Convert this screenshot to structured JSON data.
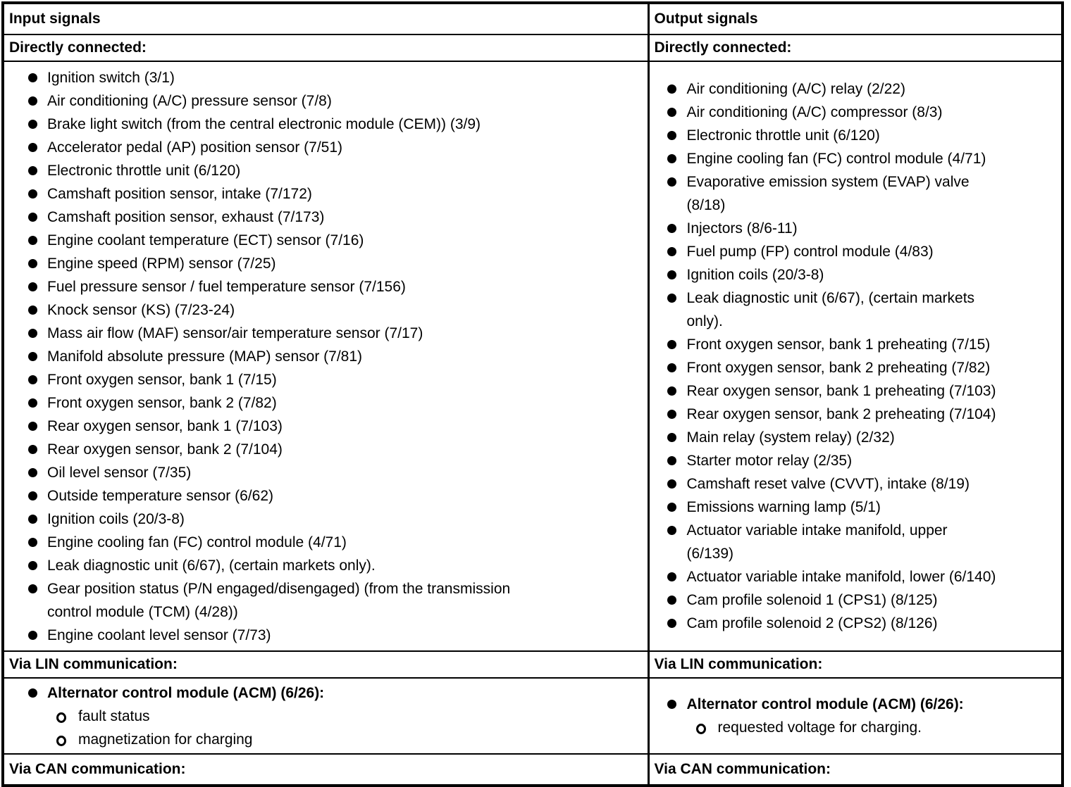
{
  "colors": {
    "text": "#000000",
    "border": "#000000",
    "background": "#ffffff"
  },
  "input": {
    "header": "Input signals",
    "direct_label": "Directly connected:",
    "direct_items": [
      {
        "lines": [
          "Ignition switch (3/1)"
        ]
      },
      {
        "lines": [
          "Air conditioning (A/C) pressure sensor (7/8)"
        ]
      },
      {
        "lines": [
          "Brake light switch (from the central electronic module (CEM)) (3/9)"
        ]
      },
      {
        "lines": [
          "Accelerator pedal (AP) position sensor (7/51)"
        ]
      },
      {
        "lines": [
          "Electronic throttle unit (6/120)"
        ]
      },
      {
        "lines": [
          "Camshaft position sensor, intake (7/172)"
        ]
      },
      {
        "lines": [
          "Camshaft position sensor, exhaust (7/173)"
        ]
      },
      {
        "lines": [
          "Engine coolant temperature (ECT) sensor (7/16)"
        ]
      },
      {
        "lines": [
          "Engine speed (RPM) sensor (7/25)"
        ]
      },
      {
        "lines": [
          "Fuel pressure sensor / fuel temperature sensor (7/156)"
        ]
      },
      {
        "lines": [
          "Knock sensor (KS) (7/23-24)"
        ]
      },
      {
        "lines": [
          "Mass air flow (MAF) sensor/air temperature sensor (7/17)"
        ]
      },
      {
        "lines": [
          "Manifold absolute pressure (MAP) sensor (7/81)"
        ]
      },
      {
        "lines": [
          "Front oxygen sensor, bank 1 (7/15)"
        ]
      },
      {
        "lines": [
          "Front oxygen sensor, bank 2 (7/82)"
        ]
      },
      {
        "lines": [
          "Rear oxygen sensor, bank 1 (7/103)"
        ]
      },
      {
        "lines": [
          "Rear oxygen sensor, bank 2 (7/104)"
        ]
      },
      {
        "lines": [
          "Oil level sensor (7/35)"
        ]
      },
      {
        "lines": [
          "Outside temperature sensor (6/62)"
        ]
      },
      {
        "lines": [
          "Ignition coils (20/3-8)"
        ]
      },
      {
        "lines": [
          "Engine cooling fan (FC) control module (4/71)"
        ]
      },
      {
        "lines": [
          "Leak diagnostic unit (6/67), (certain markets only)."
        ]
      },
      {
        "lines": [
          "Gear position status (P/N engaged/disengaged) (from the transmission",
          "control module (TCM) (4/28))"
        ]
      },
      {
        "lines": [
          "Engine coolant level sensor (7/73)"
        ]
      }
    ],
    "lin_label": "Via LIN communication:",
    "lin_items": [
      {
        "lines": [
          "Alternator control module (ACM) (6/26):"
        ],
        "bold": true,
        "sub": [
          "fault status",
          "magnetization for charging"
        ]
      }
    ],
    "can_label": "Via CAN communication:"
  },
  "output": {
    "header": "Output signals",
    "direct_label": "Directly connected:",
    "direct_items": [
      {
        "lines": [
          "Air conditioning (A/C) relay (2/22)"
        ]
      },
      {
        "lines": [
          "Air conditioning (A/C) compressor (8/3)"
        ]
      },
      {
        "lines": [
          "Electronic throttle unit (6/120)"
        ]
      },
      {
        "lines": [
          "Engine cooling fan (FC) control module (4/71)"
        ]
      },
      {
        "lines": [
          "Evaporative emission system (EVAP) valve",
          "(8/18)"
        ]
      },
      {
        "lines": [
          "Injectors (8/6-11)"
        ]
      },
      {
        "lines": [
          "Fuel pump (FP) control module (4/83)"
        ]
      },
      {
        "lines": [
          "Ignition coils (20/3-8)"
        ]
      },
      {
        "lines": [
          "Leak diagnostic unit (6/67), (certain markets",
          "only)."
        ]
      },
      {
        "lines": [
          "Front oxygen sensor, bank 1 preheating (7/15)"
        ]
      },
      {
        "lines": [
          "Front oxygen sensor, bank 2 preheating (7/82)"
        ]
      },
      {
        "lines": [
          "Rear oxygen sensor, bank 1 preheating (7/103)"
        ]
      },
      {
        "lines": [
          "Rear oxygen sensor, bank 2 preheating (7/104)"
        ]
      },
      {
        "lines": [
          "Main relay (system relay) (2/32)"
        ]
      },
      {
        "lines": [
          "Starter motor relay (2/35)"
        ]
      },
      {
        "lines": [
          "Camshaft reset valve (CVVT), intake (8/19)"
        ]
      },
      {
        "lines": [
          "Emissions warning lamp (5/1)"
        ]
      },
      {
        "lines": [
          "Actuator variable intake manifold, upper",
          "(6/139)"
        ]
      },
      {
        "lines": [
          "Actuator variable intake manifold, lower (6/140)"
        ]
      },
      {
        "lines": [
          "Cam profile solenoid 1 (CPS1) (8/125)"
        ]
      },
      {
        "lines": [
          "Cam profile solenoid 2 (CPS2) (8/126)"
        ]
      }
    ],
    "lin_label": "Via LIN communication:",
    "lin_items": [
      {
        "lines": [
          "Alternator control module (ACM) (6/26):"
        ],
        "bold": true,
        "sub": [
          "requested voltage for charging."
        ]
      }
    ],
    "can_label": "Via CAN communication:"
  }
}
